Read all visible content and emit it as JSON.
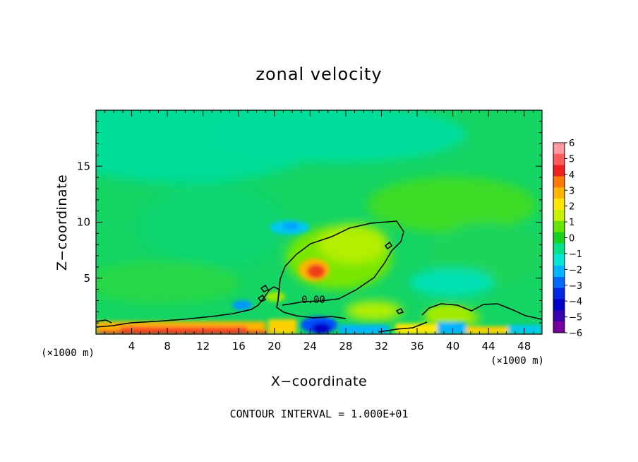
{
  "chart_data": {
    "type": "heatmap",
    "title": "zonal velocity",
    "xlabel": "X−coordinate",
    "ylabel": "Z−coordinate",
    "x_unit_left": "(×1000 m)",
    "x_unit_right": "(×1000 m)",
    "xlim": [
      0,
      50
    ],
    "ylim": [
      0,
      20
    ],
    "x_ticks": [
      4,
      8,
      12,
      16,
      20,
      24,
      28,
      32,
      36,
      40,
      44,
      48
    ],
    "y_ticks": [
      5,
      10,
      15
    ],
    "colorbar": {
      "labels": [
        "6",
        "5",
        "4",
        "3",
        "2",
        "1",
        "0",
        "−1",
        "−2",
        "−3",
        "−4",
        "−5",
        "−6"
      ],
      "range": [
        -6,
        6
      ],
      "colors": [
        "#ff9aa0",
        "#ff5a5a",
        "#f01e1e",
        "#ff7800",
        "#ffb400",
        "#ffe600",
        "#c8f000",
        "#64e600",
        "#14d21e",
        "#00e18c",
        "#00e6d7",
        "#00b4ff",
        "#0069ff",
        "#0028e6",
        "#0000c8",
        "#3c00b4",
        "#7800a0"
      ]
    },
    "contour_label": "0.00",
    "contour_interval_text": "CONTOUR INTERVAL = 1.000E+01",
    "background_value": -1
  }
}
